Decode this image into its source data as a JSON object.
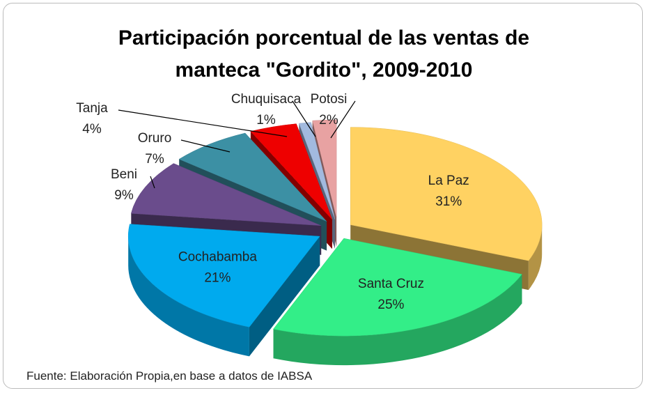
{
  "chart_data": {
    "type": "pie",
    "title": "Participación porcentual de las ventas de manteca \"Gordito\", 2009-2010",
    "categories": [
      "La Paz",
      "Santa Cruz",
      "Cochabamba",
      "Beni",
      "Oruro",
      "Tanja",
      "Chuquisaca",
      "Potosi"
    ],
    "values": [
      31,
      25,
      21,
      9,
      7,
      4,
      1,
      2
    ],
    "value_labels": [
      "31%",
      "25%",
      "21%",
      "9%",
      "7%",
      "4%",
      "1%",
      "2%"
    ],
    "colors": [
      "#ffd262",
      "#33ee88",
      "#00aaee",
      "#6a4c8c",
      "#3c90a4",
      "#ee0000",
      "#a2badf",
      "#e8a2a2"
    ],
    "source": "Fuente: Elaboración Propia,en base a datos de IABSA"
  }
}
